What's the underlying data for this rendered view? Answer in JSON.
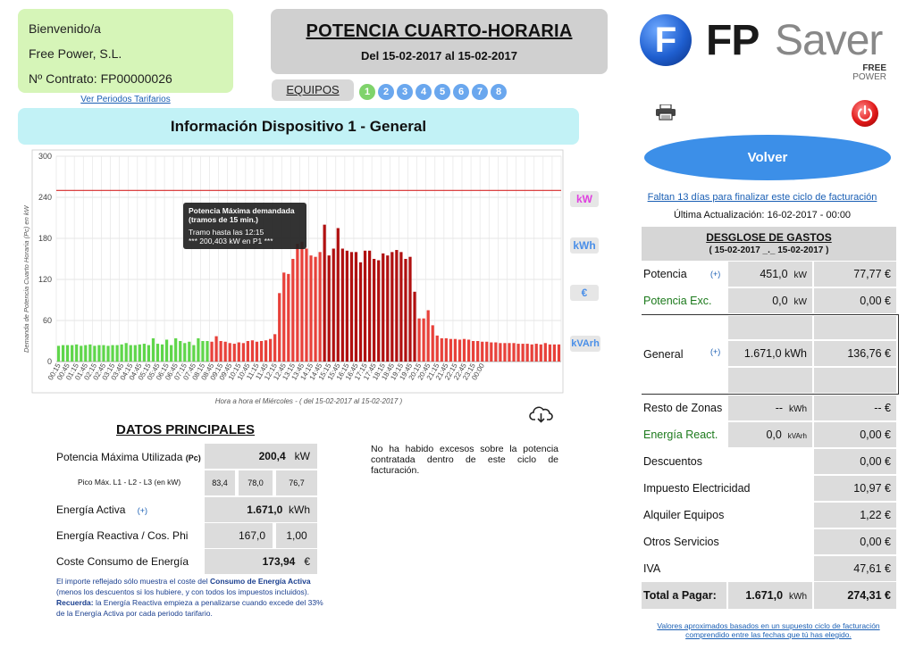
{
  "greeting": {
    "line1": "Bienvenido/a",
    "line2": "Free Power, S.L.",
    "line3": "Nº Contrato: FP00000026",
    "link": "Ver Periodos Tarifarios"
  },
  "header": {
    "title": "POTENCIA CUARTO-HORARIA",
    "date_range": "Del 15-02-2017 al 15-02-2017",
    "equipos_label": "EQUIPOS",
    "equipos": [
      "1",
      "2",
      "3",
      "4",
      "5",
      "6",
      "7",
      "8"
    ],
    "equipo_active_color": "#7fd36b",
    "equipo_color": "#6aa7ee"
  },
  "logo": {
    "fp": "FP",
    "saver": "Saver",
    "free": "FREE",
    "power": "POWER"
  },
  "device": {
    "title": "Información Dispositivo 1 - General"
  },
  "chart_data": {
    "type": "bar",
    "ylabel": "Demanda de Potencia Cuarto Horaria (Pc) en kW",
    "xlabel": "Hora a hora el Miércoles - ( del 15-02-2017 al 15-02-2017 )",
    "ylim": [
      0,
      300
    ],
    "yticks": [
      0,
      60,
      120,
      180,
      240,
      300
    ],
    "limit_line": 250,
    "limit_color": "#d62a2a",
    "x_tick_labels": [
      "00:15",
      "00:45",
      "01:15",
      "01:45",
      "02:15",
      "02:45",
      "03:15",
      "03:45",
      "04:15",
      "04:45",
      "05:15",
      "05:45",
      "06:15",
      "06:45",
      "07:15",
      "07:45",
      "08:15",
      "08:45",
      "09:15",
      "09:45",
      "10:15",
      "10:45",
      "11:15",
      "11:45",
      "12:15",
      "12:45",
      "13:15",
      "13:45",
      "14:15",
      "14:45",
      "15:15",
      "15:45",
      "16:15",
      "16:45",
      "17:15",
      "17:45",
      "18:15",
      "18:45",
      "19:15",
      "19:45",
      "20:15",
      "20:45",
      "21:15",
      "21:45",
      "22:15",
      "22:45",
      "23:15",
      "00:00"
    ],
    "values": [
      23,
      24,
      24,
      24,
      25,
      23,
      24,
      25,
      23,
      24,
      24,
      23,
      24,
      24,
      25,
      27,
      24,
      24,
      25,
      26,
      24,
      34,
      26,
      25,
      32,
      24,
      34,
      30,
      27,
      29,
      24,
      34,
      30,
      30,
      29,
      37,
      30,
      29,
      27,
      26,
      28,
      27,
      30,
      31,
      29,
      30,
      31,
      33,
      40,
      100,
      130,
      128,
      150,
      172,
      175,
      165,
      155,
      153,
      160,
      200,
      155,
      165,
      195,
      165,
      162,
      160,
      160,
      145,
      162,
      162,
      150,
      148,
      158,
      155,
      160,
      163,
      160,
      150,
      153,
      102,
      63,
      63,
      75,
      53,
      38,
      34,
      34,
      33,
      33,
      32,
      33,
      32,
      30,
      30,
      29,
      29,
      28,
      28,
      27,
      27,
      27,
      27,
      26,
      26,
      26,
      25,
      26,
      25,
      27,
      25,
      25,
      25
    ],
    "series_colors": {
      "P3": "#5fd64a",
      "P2": "#e8413a",
      "P1": "#b01010"
    },
    "periods": "00:00-08:00 P3, 08:00-12:00 P2, 12:00-... see colors",
    "tooltip": {
      "title1": "Potencia Máxima demandada",
      "title2": "(tramos de 15 min.)",
      "line1": "Tramo hasta las 12:15",
      "line2": "*** 200,403 kW  en  P1 ***"
    },
    "units": [
      "kW",
      "kWh",
      "€",
      "kVArh"
    ]
  },
  "datos": {
    "title": "DATOS PRINCIPALES",
    "pot_max_label": "Potencia Máxima Utilizada",
    "pot_max_tag": "(Pc)",
    "pot_max_value": "200,4",
    "pot_max_unit": "kW",
    "pico_label": "Pico Máx. L1 - L2 - L3 (en kW)",
    "pico_values": [
      "83,4",
      "78,0",
      "76,7"
    ],
    "energia_activa_label": "Energía Activa",
    "plus": "(+)",
    "energia_activa_value": "1.671,0",
    "energia_activa_unit": "kWh",
    "reactiva_label": "Energía Reactiva / Cos. Phi",
    "reactiva_value": "167,0",
    "cos_phi": "1,00",
    "coste_label": "Coste Consumo de Energía",
    "coste_value": "173,94",
    "coste_unit": "€",
    "nota_excesos": "No ha habido excesos sobre la potencia contratada dentro de este ciclo de facturación.",
    "nota1a": "El importe reflejado sólo muestra el coste del ",
    "nota1b": "Consumo de Energía Activa",
    "nota1c": " (menos los descuentos si los hubiere, y con todos los impuestos incluidos).",
    "nota2a": "Recuerda:",
    "nota2b": " la Energía Reactiva empieza a penalizarse cuando excede del 33% de la Energía Activa por cada periodo tarifario."
  },
  "right": {
    "volver": "Volver",
    "faltan": "Faltan 13 días para finalizar este ciclo de facturación",
    "ultima": "Última Actualización: 16-02-2017 - 00:00",
    "desglose_title": "DESGLOSE DE GASTOS",
    "desglose_range": "( 15-02-2017 _._ 15-02-2017 )",
    "plus": "(+)",
    "rows": {
      "potencia": {
        "label": "Potencia",
        "qty": "451,0",
        "unit": "kW",
        "amount": "77,77 €"
      },
      "potencia_exc": {
        "label": "Potencia Exc.",
        "qty": "0,0",
        "unit": "kW",
        "amount": "0,00 €"
      },
      "general": {
        "label": "General",
        "qty": "1.671,0 kWh",
        "amount": "136,76 €"
      },
      "resto": {
        "label": "Resto de Zonas",
        "qty": "--",
        "unit": "kWh",
        "amount": "-- €"
      },
      "reactiva": {
        "label": "Energía React.",
        "qty": "0,0",
        "unit": "kVArh",
        "amount": "0,00 €"
      },
      "descuentos": {
        "label": "Descuentos",
        "amount": "0,00 €"
      },
      "impuesto": {
        "label": "Impuesto Electricidad",
        "amount": "10,97 €"
      },
      "alquiler": {
        "label": "Alquiler Equipos",
        "amount": "1,22 €"
      },
      "otros": {
        "label": "Otros Servicios",
        "amount": "0,00 €"
      },
      "iva": {
        "label": "IVA",
        "amount": "47,61 €"
      },
      "total": {
        "label": "Total a Pagar:",
        "qty": "1.671,0",
        "unit": "kWh",
        "amount": "274,31 €"
      }
    },
    "fac_note": "Valores aproximados basados en un supuesto ciclo de facturación comprendido entre las fechas que tú has elegido."
  }
}
